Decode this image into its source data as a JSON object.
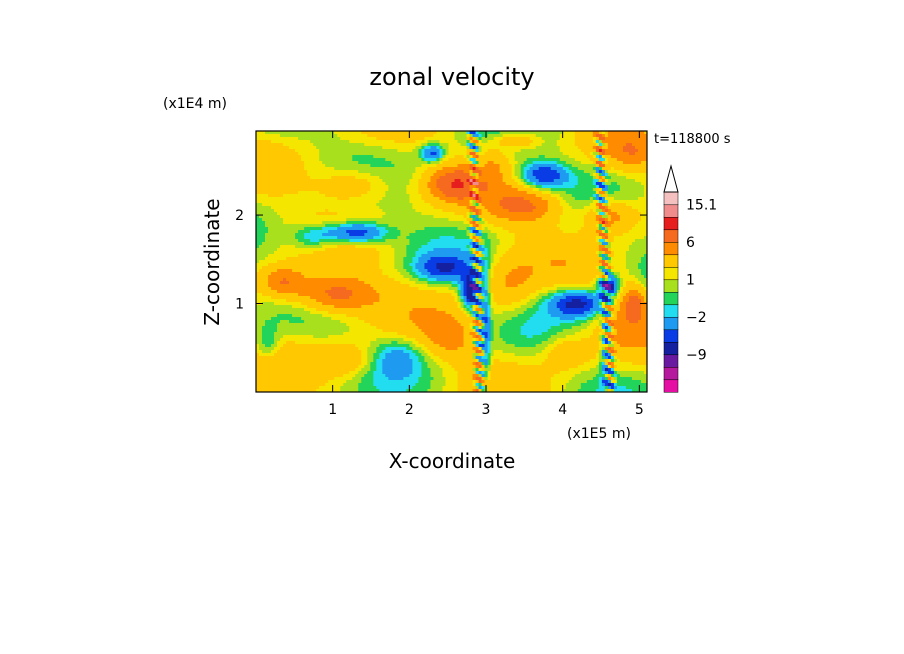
{
  "chart_data": {
    "type": "heatmap",
    "title": "zonal velocity",
    "xlabel": "X-coordinate",
    "ylabel": "Z-coordinate",
    "x_unit": "(x1E5 m)",
    "y_unit": "(x1E4 m)",
    "time_label": "t=118800 s",
    "xlim": [
      0.0,
      5.1
    ],
    "ylim": [
      0.0,
      2.95
    ],
    "x_ticks": [
      {
        "value": 1,
        "label": "1"
      },
      {
        "value": 2,
        "label": "2"
      },
      {
        "value": 3,
        "label": "3"
      },
      {
        "value": 4,
        "label": "4"
      },
      {
        "value": 5,
        "label": "5"
      }
    ],
    "y_ticks": [
      {
        "value": 1,
        "label": "1"
      },
      {
        "value": 2,
        "label": "2"
      }
    ],
    "colorbar": {
      "levels": [
        -15,
        -12,
        -9,
        -6,
        -4,
        -2,
        -1,
        0,
        1,
        2,
        4,
        6,
        9,
        12,
        15.1
      ],
      "colors": [
        "#e60fa3",
        "#b51a9e",
        "#6a1aa0",
        "#1420a0",
        "#0a3ce6",
        "#1e9bf0",
        "#22dcf0",
        "#22d45a",
        "#a8e01e",
        "#f5e600",
        "#ffc800",
        "#ff8c00",
        "#f56a1e",
        "#e61e1e",
        "#f08c8c",
        "#f5c0c0"
      ],
      "labels": [
        {
          "value": 15.1,
          "label": "15.1"
        },
        {
          "value": 6,
          "label": "6"
        },
        {
          "value": 1,
          "label": "1"
        },
        {
          "value": -2,
          "label": "−2"
        },
        {
          "value": -9,
          "label": "−9"
        }
      ],
      "extend": "max"
    },
    "field_description": "Layered zonal wind field with alternating positive (orange) and negative (blue) bands tilting with height; strong narrow wave features near x=2.9 and x=4.6",
    "features": [
      {
        "x": 1.0,
        "z": 1.1,
        "value": 7,
        "sx": 0.55,
        "sz": 0.22
      },
      {
        "x": 0.35,
        "z": 1.25,
        "value": 5,
        "sx": 0.3,
        "sz": 0.18
      },
      {
        "x": 1.3,
        "z": 2.35,
        "value": 4,
        "sx": 0.5,
        "sz": 0.2
      },
      {
        "x": 2.6,
        "z": 2.35,
        "value": 6,
        "sx": 0.35,
        "sz": 0.18
      },
      {
        "x": 3.55,
        "z": 2.1,
        "value": 5,
        "sx": 0.5,
        "sz": 0.2
      },
      {
        "x": 4.6,
        "z": 2.0,
        "value": 5,
        "sx": 0.35,
        "sz": 0.2
      },
      {
        "x": 4.9,
        "z": 2.7,
        "value": 3,
        "sx": 0.3,
        "sz": 0.2
      },
      {
        "x": 3.4,
        "z": 2.85,
        "value": 4,
        "sx": 0.3,
        "sz": 0.1
      },
      {
        "x": 3.3,
        "z": 1.2,
        "value": 3,
        "sx": 0.35,
        "sz": 0.35
      },
      {
        "x": 2.55,
        "z": 0.6,
        "value": 3,
        "sx": 0.35,
        "sz": 0.25
      },
      {
        "x": 1.2,
        "z": 0.35,
        "value": 3,
        "sx": 0.35,
        "sz": 0.2
      },
      {
        "x": 4.05,
        "z": 0.45,
        "value": 3,
        "sx": 0.3,
        "sz": 0.2
      },
      {
        "x": 1.3,
        "z": 1.8,
        "value": -8,
        "sx": 0.4,
        "sz": 0.12
      },
      {
        "x": 0.75,
        "z": 1.75,
        "value": -4,
        "sx": 0.3,
        "sz": 0.15
      },
      {
        "x": 2.45,
        "z": 1.4,
        "value": -6,
        "sx": 0.35,
        "sz": 0.15
      },
      {
        "x": 2.8,
        "z": 1.15,
        "value": -10,
        "sx": 0.12,
        "sz": 0.2
      },
      {
        "x": 3.75,
        "z": 2.45,
        "value": -7,
        "sx": 0.3,
        "sz": 0.14
      },
      {
        "x": 2.3,
        "z": 2.7,
        "value": -6,
        "sx": 0.15,
        "sz": 0.1
      },
      {
        "x": 4.2,
        "z": 1.0,
        "value": -8,
        "sx": 0.35,
        "sz": 0.15
      },
      {
        "x": 4.6,
        "z": 1.2,
        "value": -10,
        "sx": 0.12,
        "sz": 0.12
      },
      {
        "x": 1.85,
        "z": 0.4,
        "value": -3,
        "sx": 0.3,
        "sz": 0.2
      },
      {
        "x": 0.15,
        "z": 0.55,
        "value": -3,
        "sx": 0.15,
        "sz": 0.2
      },
      {
        "x": 3.0,
        "z": 0.7,
        "value": -5,
        "sx": 0.06,
        "sz": 0.7
      },
      {
        "x": 4.55,
        "z": 0.5,
        "value": -4,
        "sx": 0.06,
        "sz": 0.5
      },
      {
        "x": 4.75,
        "z": 0.9,
        "value": 2,
        "sx": 0.3,
        "sz": 0.4
      },
      {
        "x": 4.95,
        "z": 1.0,
        "value": 5,
        "sx": 0.15,
        "sz": 0.2
      },
      {
        "x": 3.1,
        "z": 2.6,
        "value": 2,
        "sx": 0.2,
        "sz": 0.2
      }
    ]
  }
}
